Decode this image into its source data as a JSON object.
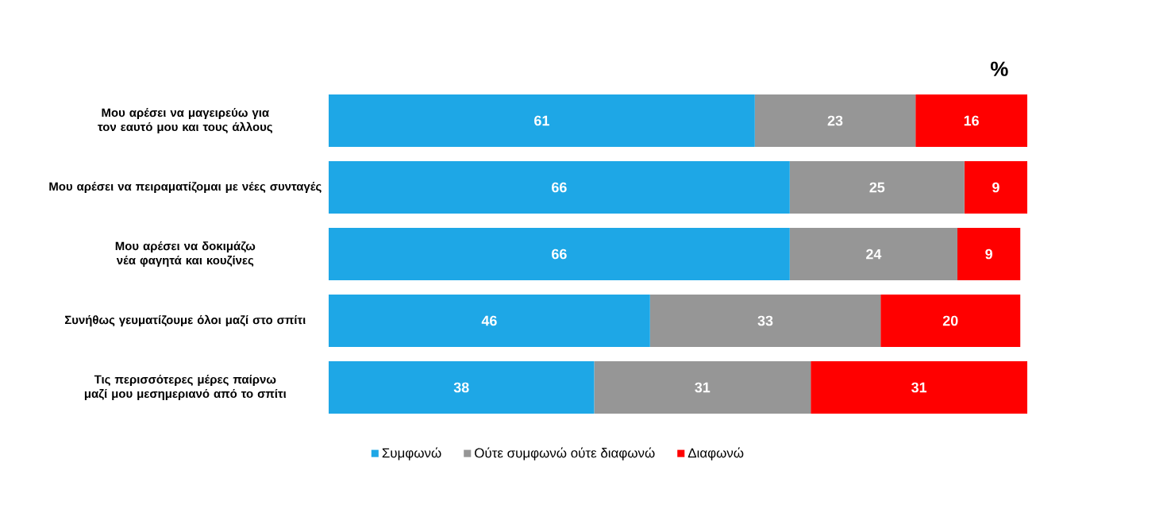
{
  "chart_data": {
    "type": "bar",
    "orientation": "horizontal",
    "stacked": true,
    "data_labels": true,
    "legend": "bottom",
    "xlim": [
      0,
      100
    ],
    "categories": [
      "Μου αρέσει να μαγειρεύω για τον εαυτό μου και τους άλλους",
      "Μου αρέσει να πειραματίζομαι με νέες συνταγές",
      "Μου αρέσει να δοκιμάζω νέα φαγητά και κουζίνες",
      "Συνήθως γευματίζουμε όλοι μαζί στο σπίτι",
      "Τις περισσότερες μέρες παίρνω μαζί μου μεσημεριανό από το σπίτι"
    ],
    "series": [
      {
        "name": "Συμφωνώ",
        "color": "#1ea7e6",
        "values": [
          61,
          66,
          66,
          46,
          38
        ]
      },
      {
        "name": "Ούτε συμφωνώ ούτε διαφωνώ",
        "color": "#969696",
        "values": [
          23,
          25,
          24,
          33,
          31
        ]
      },
      {
        "name": "Διαφωνώ",
        "color": "#ff0000",
        "values": [
          16,
          9,
          9,
          20,
          31
        ]
      }
    ],
    "annotations": [
      "%"
    ]
  }
}
